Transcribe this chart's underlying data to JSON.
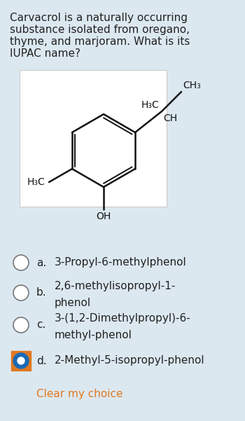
{
  "background_color": "#dce8f0",
  "question_text_lines": [
    "Carvacrol is a naturally occurring",
    "substance isolated from oregano,",
    "thyme, and marjoram. What is its",
    "IUPAC name?"
  ],
  "question_fontsize": 11.0,
  "molecule_box_color": "#ffffff",
  "options": [
    {
      "label": "a.",
      "line1": "3-Propyl-6-methylphenol",
      "line2": "",
      "selected": false
    },
    {
      "label": "b.",
      "line1": "2,6-methylisopropyl-1-",
      "line2": "phenol",
      "selected": false
    },
    {
      "label": "c.",
      "line1": "3-(1,2-Dimethylpropyl)-6-",
      "line2": "methyl-phenol",
      "selected": false
    },
    {
      "label": "d.",
      "line1": "2-Methyl-5-isopropyl-phenol",
      "line2": "",
      "selected": true
    }
  ],
  "clear_text": "Clear my choice",
  "clear_color": "#e07820",
  "options_fontsize": 11.0,
  "selected_fill": "#1a6ab5",
  "selected_border": "#e07820",
  "text_color": "#222222"
}
